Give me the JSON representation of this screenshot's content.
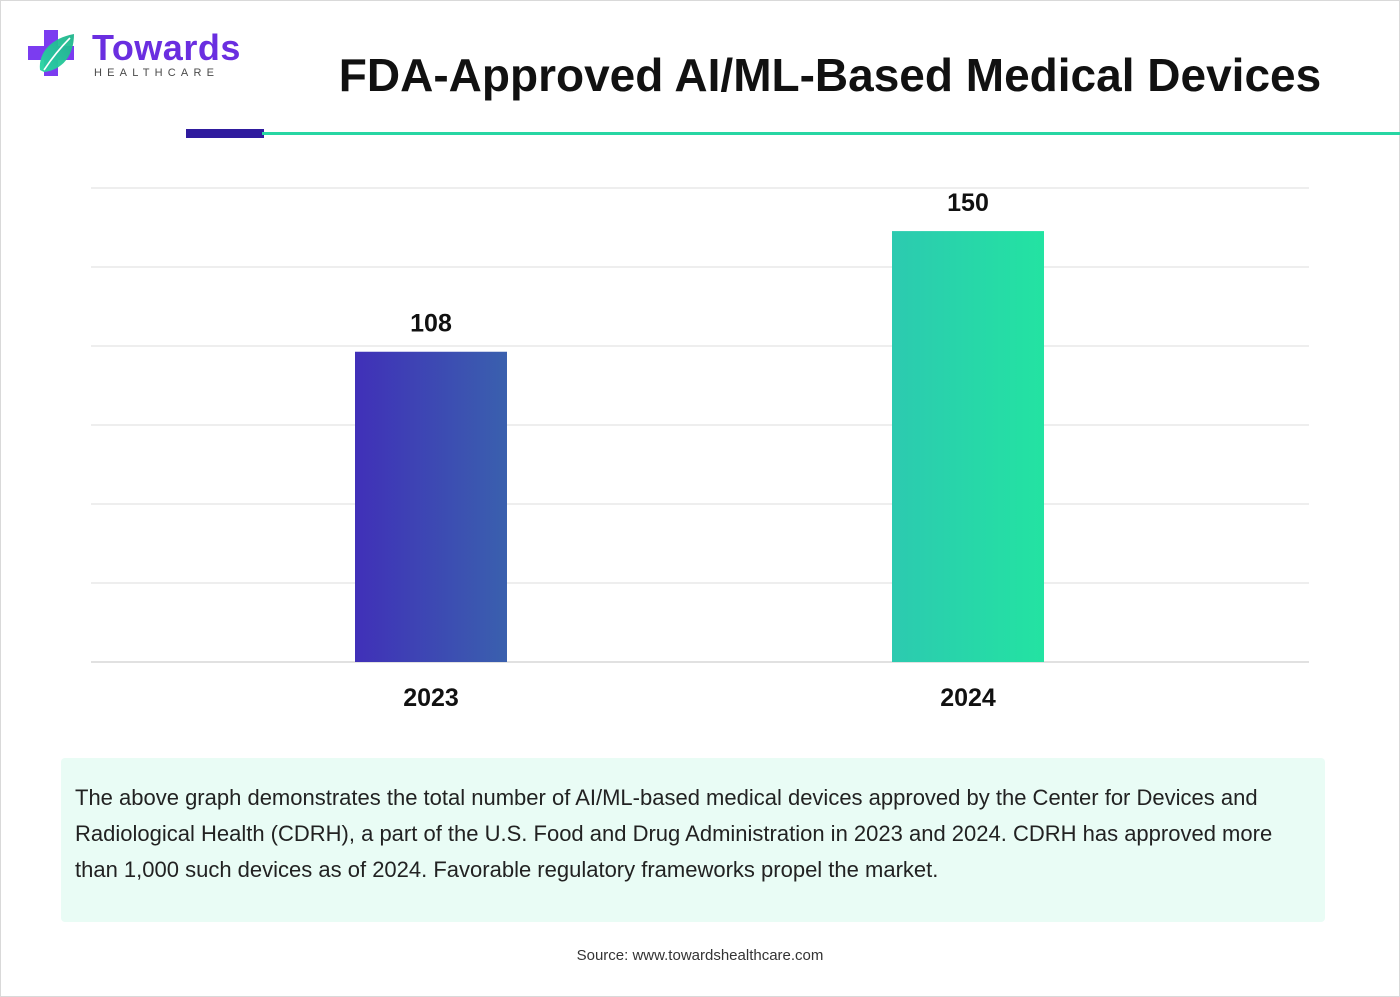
{
  "brand": {
    "name": "Towards",
    "tagline": "HEALTHCARE",
    "colors": {
      "purple": "#6a2ee0",
      "teal": "#27d6a3",
      "navy": "#2f1b9e"
    }
  },
  "header": {
    "title": "FDA-Approved AI/ML-Based Medical Devices"
  },
  "chart_data": {
    "type": "bar",
    "title": "FDA-Approved AI/ML-Based Medical Devices",
    "categories": [
      "2023",
      "2024"
    ],
    "values": [
      108,
      150
    ],
    "data_labels": [
      "108",
      "150"
    ],
    "ylim": [
      0,
      165
    ],
    "xlabel": "",
    "ylabel": "",
    "grid": true,
    "bar_colors": [
      [
        "#4030b8",
        "#3a60ae"
      ],
      [
        "#2ccab0",
        "#23e3a2"
      ]
    ]
  },
  "description": {
    "text": "The above graph demonstrates the total number of AI/ML-based medical devices approved by the Center for Devices and Radiological Health (CDRH), a part of the U.S. Food and Drug Administration in 2023 and 2024. CDRH has approved more than 1,000 such devices as of 2024. Favorable regulatory frameworks propel the market."
  },
  "footer": {
    "source": "Source: www.towardshealthcare.com"
  }
}
